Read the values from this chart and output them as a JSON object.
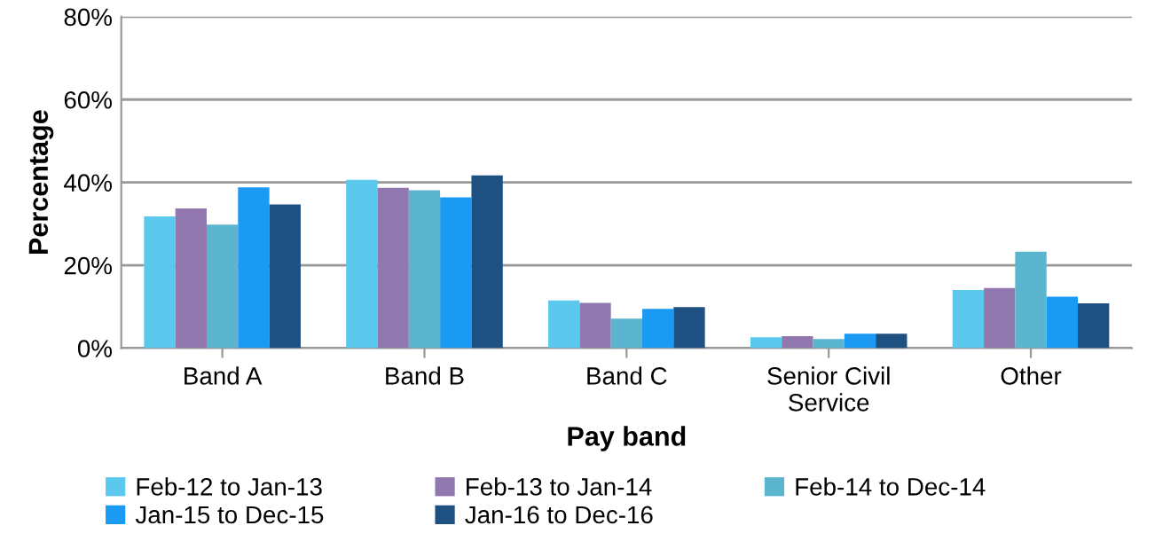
{
  "chart_data": {
    "type": "bar",
    "xlabel": "Pay band",
    "ylabel": "Percentage",
    "categories": [
      "Band A",
      "Band B",
      "Band C",
      "Senior Civil\nService",
      "Other"
    ],
    "series": [
      {
        "name": "Feb-12 to Jan-13",
        "color": "#5bc8ee",
        "values": [
          31.8,
          40.6,
          11.5,
          2.6,
          14.0
        ]
      },
      {
        "name": "Feb-13 to Jan-14",
        "color": "#9179b0",
        "values": [
          33.7,
          38.7,
          10.9,
          2.9,
          14.5
        ]
      },
      {
        "name": "Feb-14 to Dec-14",
        "color": "#5bb5cf",
        "values": [
          29.8,
          38.1,
          7.1,
          2.2,
          23.3
        ]
      },
      {
        "name": "Jan-15 to Dec-15",
        "color": "#1a9af2",
        "values": [
          38.8,
          36.4,
          9.5,
          3.5,
          12.4
        ]
      },
      {
        "name": "Jan-16 to Dec-16",
        "color": "#1f5082",
        "values": [
          34.7,
          41.7,
          9.9,
          3.5,
          10.8
        ]
      }
    ],
    "ylim": [
      0,
      80
    ],
    "yticks": [
      {
        "value": 0,
        "label": "0%"
      },
      {
        "value": 20,
        "label": "20%"
      },
      {
        "value": 40,
        "label": "40%"
      },
      {
        "value": 60,
        "label": "60%"
      },
      {
        "value": 80,
        "label": "80%"
      }
    ],
    "grid": "y",
    "legend": "bottom"
  }
}
